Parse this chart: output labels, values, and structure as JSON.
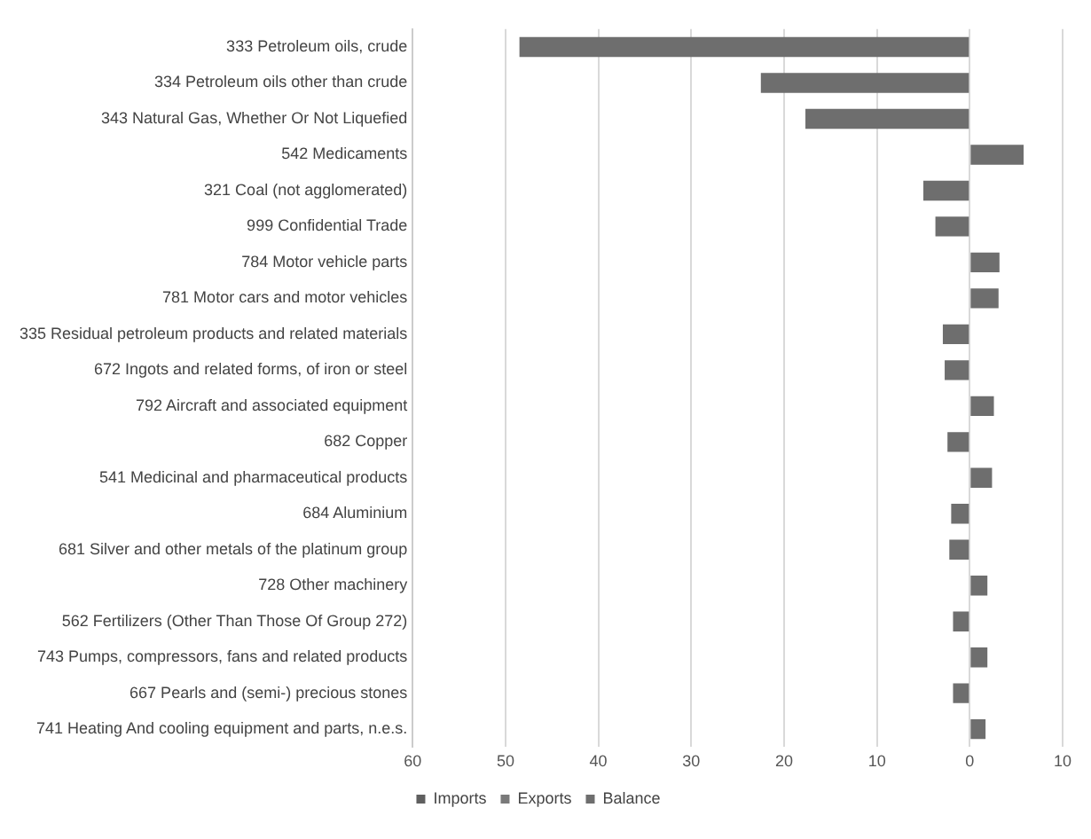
{
  "chart_data": {
    "type": "bar",
    "orientation": "horizontal",
    "categories": [
      "333 Petroleum oils, crude",
      "334 Petroleum oils other than crude",
      "343 Natural Gas, Whether Or Not Liquefied",
      "542 Medicaments",
      "321 Coal (not agglomerated)",
      "999 Confidential Trade",
      "784 Motor vehicle parts",
      "781 Motor cars and motor vehicles",
      "335 Residual petroleum products and related materials",
      "672 Ingots and related forms, of iron or steel",
      "792 Aircraft and associated equipment",
      "682 Copper",
      "541 Medicinal and pharmaceutical products",
      "684 Aluminium",
      "681 Silver and other metals of the platinum group",
      "728 Other machinery",
      "562 Fertilizers (Other Than Those Of Group 272)",
      "743 Pumps, compressors, fans and related products",
      "667 Pearls and (semi-) precious stones",
      "741 Heating And cooling equipment and parts, n.e.s."
    ],
    "series": [
      {
        "name": "Imports",
        "color": "#5f5f5f",
        "values": [
          null,
          null,
          null,
          null,
          null,
          null,
          null,
          null,
          null,
          null,
          null,
          null,
          null,
          null,
          null,
          null,
          null,
          null,
          null,
          null
        ]
      },
      {
        "name": "Exports",
        "color": "#7a7a7a",
        "values": [
          null,
          null,
          null,
          null,
          null,
          null,
          null,
          null,
          null,
          null,
          null,
          null,
          null,
          null,
          null,
          null,
          null,
          null,
          null,
          null
        ]
      },
      {
        "name": "Balance",
        "color": "#6e6e6e",
        "values": [
          -48.5,
          -22.5,
          -17.7,
          5.8,
          -5.0,
          -3.7,
          3.2,
          3.1,
          -2.9,
          -2.7,
          2.6,
          -2.4,
          2.4,
          -2.0,
          -2.2,
          1.9,
          -1.8,
          1.9,
          -1.8,
          1.7
        ]
      }
    ],
    "xlim": [
      -60,
      10
    ],
    "xticks": [
      {
        "value": -60,
        "label": "60"
      },
      {
        "value": -50,
        "label": "50"
      },
      {
        "value": -40,
        "label": "40"
      },
      {
        "value": -30,
        "label": "30"
      },
      {
        "value": -20,
        "label": "20"
      },
      {
        "value": -10,
        "label": "10"
      },
      0,
      10
    ],
    "grid": "x",
    "legend": "bottom"
  }
}
